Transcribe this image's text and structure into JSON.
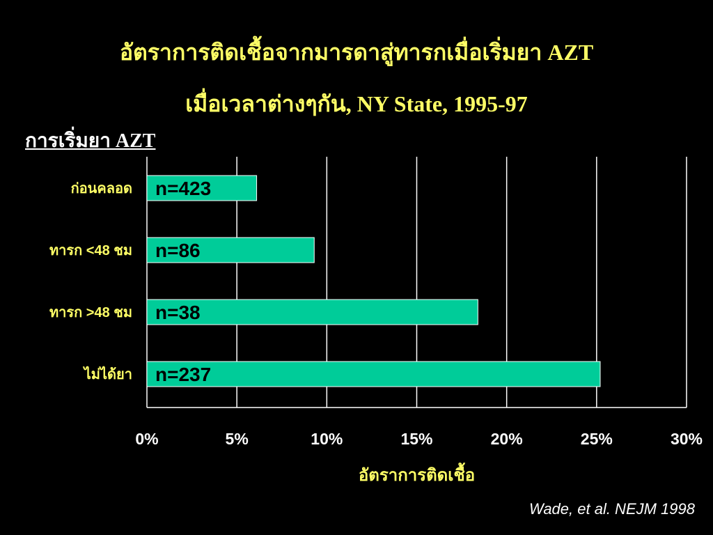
{
  "slide": {
    "title_line1": "อัตราการติดเชื้อจากมารดาสู่ทารกเมื่อเริ่มยา AZT",
    "title_line2": "เมื่อเวลาต่างๆกัน, NY State, 1995-97",
    "subtitle": "การเริ่มยา AZT",
    "source": "Wade, et al. NEJM 1998"
  },
  "colors": {
    "background": "#000000",
    "bar_fill": "#00cc99",
    "title_text": "#ffff66",
    "category_text": "#ffff66",
    "tick_text": "#ffffff",
    "gridline": "#ffffff"
  },
  "chart_data": {
    "type": "bar",
    "orientation": "horizontal",
    "categories": [
      "ก่อนคลอด",
      "ทารก <48 ชม",
      "ทารก >48 ชม",
      "ไม่ได้ยา"
    ],
    "values": [
      6.1,
      9.3,
      18.4,
      25.2
    ],
    "bar_labels": [
      "n=423",
      "n=86",
      "n=38",
      "n=237"
    ],
    "xlabel": "อัตราการติดเชื้อ",
    "ylabel": "",
    "xlim": [
      0,
      30
    ],
    "ticks": [
      0,
      5,
      10,
      15,
      20,
      25,
      30
    ],
    "tick_labels": [
      "0%",
      "5%",
      "10%",
      "15%",
      "20%",
      "25%",
      "30%"
    ],
    "grid": "vertical"
  }
}
